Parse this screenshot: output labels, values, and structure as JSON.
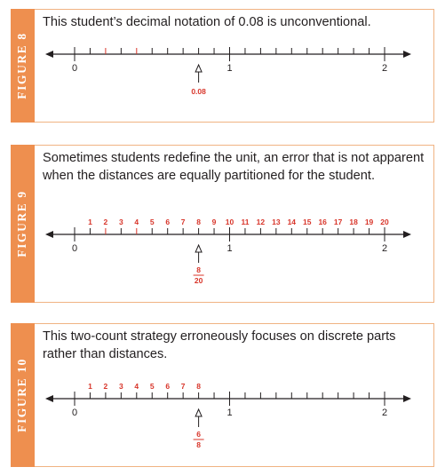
{
  "figures": [
    {
      "tab": "FIGURE 8",
      "caption": "This student’s decimal notation of 0.08 is unconventional.",
      "red_ticks": [
        2,
        4
      ],
      "tick_labels": [],
      "answer_value": 0.8,
      "answer_text": "0.08",
      "answer_frac": null
    },
    {
      "tab": "FIGURE 9",
      "caption": "Sometimes students redefine the unit, an error that is not apparent when the distances are equally partitioned for the student.",
      "red_ticks": [
        2,
        4
      ],
      "tick_labels": [
        "1",
        "2",
        "3",
        "4",
        "5",
        "6",
        "7",
        "8",
        "9",
        "10",
        "11",
        "12",
        "13",
        "14",
        "15",
        "16",
        "17",
        "18",
        "19",
        "20"
      ],
      "answer_value": 0.8,
      "answer_text": null,
      "answer_frac": {
        "num": "8",
        "den": "20"
      }
    },
    {
      "tab": "FIGURE 10",
      "caption": "This two-count strategy erroneously focuses on discrete parts rather than distances.",
      "red_ticks": [],
      "tick_labels": [
        "1",
        "2",
        "3",
        "4",
        "5",
        "6",
        "7",
        "8"
      ],
      "answer_value": 0.8,
      "answer_text": null,
      "answer_frac": {
        "num": "6",
        "den": "8"
      }
    }
  ],
  "axis": {
    "labels": [
      "0",
      "1",
      "2"
    ],
    "min": 0,
    "max": 2,
    "divisions": 20
  },
  "colors": {
    "tab": "#ee8f4f",
    "border": "#f0b383",
    "red": "#d8352a",
    "text": "#231f20"
  }
}
